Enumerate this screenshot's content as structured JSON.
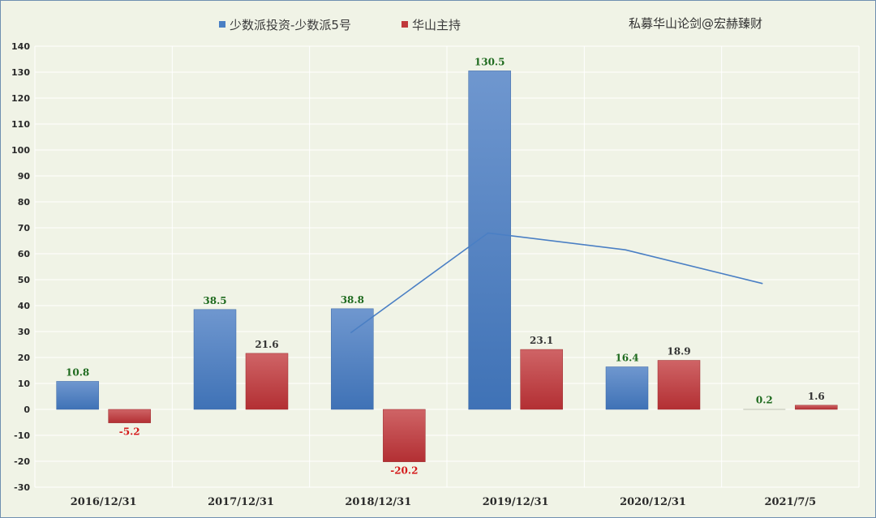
{
  "watermark": "私募华山论剑@宏赫臻财",
  "colors": {
    "background": "#f0f3e6",
    "series_a": "#4a7fc4",
    "series_b": "#c0393b",
    "positive_label": "#1f6b1f",
    "negative_label": "#d41a1a",
    "label_default": "#333333",
    "trend_line": "#4a7fc4",
    "gridline": "#ffffff"
  },
  "chart_data": {
    "type": "bar",
    "categories": [
      "2016/12/31",
      "2017/12/31",
      "2018/12/31",
      "2019/12/31",
      "2020/12/31",
      "2021/7/5"
    ],
    "series": [
      {
        "name": "少数派投资-少数派5号",
        "values": [
          10.8,
          38.5,
          38.8,
          130.5,
          16.4,
          0.2
        ]
      },
      {
        "name": "华山主持",
        "values": [
          -5.2,
          21.6,
          -20.2,
          23.1,
          18.9,
          1.6
        ]
      }
    ],
    "line": {
      "x": [
        "2018/12/31",
        "2019/12/31",
        "2020/12/31",
        "2021/7/5"
      ],
      "values": [
        29.5,
        68,
        61.5,
        48.5
      ]
    },
    "yticks": [
      140,
      130,
      120,
      110,
      100,
      90,
      80,
      70,
      60,
      50,
      40,
      30,
      20,
      10,
      0,
      -10,
      -20,
      -30
    ],
    "ylim": [
      -30,
      140
    ],
    "legend_position": "top-center",
    "grid": true
  }
}
